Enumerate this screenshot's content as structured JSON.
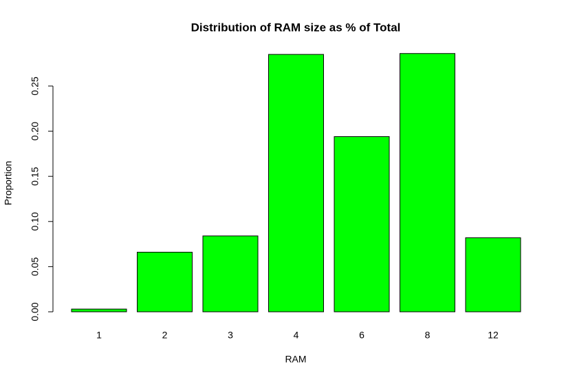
{
  "chart_data": {
    "type": "bar",
    "title": "Distribution of RAM size as % of Total",
    "x_label": "RAM",
    "y_label": "Proportion",
    "categories": [
      "1",
      "2",
      "3",
      "4",
      "6",
      "8",
      "12"
    ],
    "values": [
      0.003,
      0.066,
      0.084,
      0.285,
      0.194,
      0.286,
      0.082
    ],
    "color": "#00ff00",
    "ylim": [
      0,
      0.29
    ],
    "yticks": [
      {
        "value": 0,
        "label": "0.00"
      },
      {
        "value": 0.05,
        "label": "0.05"
      },
      {
        "value": 0.1,
        "label": "0.10"
      },
      {
        "value": 0.15,
        "label": "0.15"
      },
      {
        "value": 0.2,
        "label": "0.20"
      },
      {
        "value": 0.25,
        "label": "0.25"
      }
    ],
    "grid": false
  }
}
